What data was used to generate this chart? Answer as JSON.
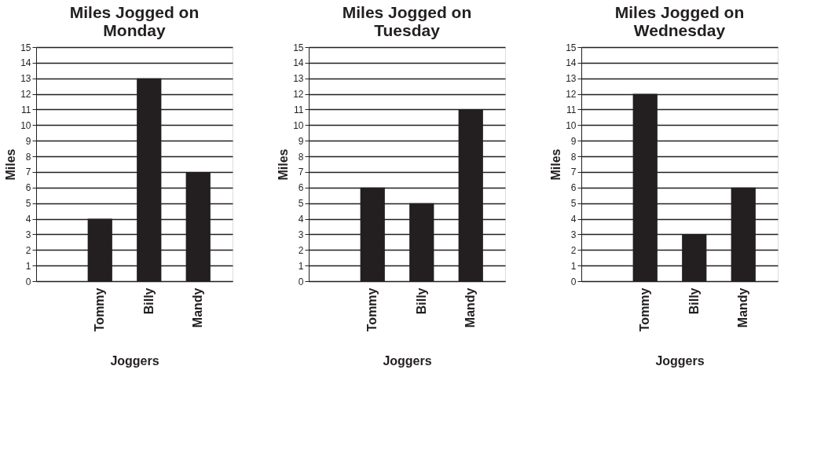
{
  "chart_data": [
    {
      "type": "bar",
      "title": "Miles Jogged on Monday",
      "xlabel": "Joggers",
      "ylabel": "Miles",
      "categories": [
        "Tommy",
        "Billy",
        "Mandy"
      ],
      "values": [
        4,
        13,
        7
      ],
      "color": "#231f20",
      "ylim": [
        0,
        15
      ],
      "yticks": [
        0,
        1,
        2,
        3,
        4,
        5,
        6,
        7,
        8,
        9,
        10,
        11,
        12,
        13,
        14,
        15
      ],
      "grid": "y"
    },
    {
      "type": "bar",
      "title": "Miles Jogged on Tuesday",
      "xlabel": "Joggers",
      "ylabel": "Miles",
      "categories": [
        "Tommy",
        "Billy",
        "Mandy"
      ],
      "values": [
        6,
        5,
        11
      ],
      "color": "#231f20",
      "ylim": [
        0,
        15
      ],
      "yticks": [
        0,
        1,
        2,
        3,
        4,
        5,
        6,
        7,
        8,
        9,
        10,
        11,
        12,
        13,
        14,
        15
      ],
      "grid": "y"
    },
    {
      "type": "bar",
      "title": "Miles Jogged on Wednesday",
      "xlabel": "Joggers",
      "ylabel": "Miles",
      "categories": [
        "Tommy",
        "Billy",
        "Mandy"
      ],
      "values": [
        12,
        3,
        6
      ],
      "color": "#231f20",
      "ylim": [
        0,
        15
      ],
      "yticks": [
        0,
        1,
        2,
        3,
        4,
        5,
        6,
        7,
        8,
        9,
        10,
        11,
        12,
        13,
        14,
        15
      ],
      "grid": "y"
    }
  ]
}
